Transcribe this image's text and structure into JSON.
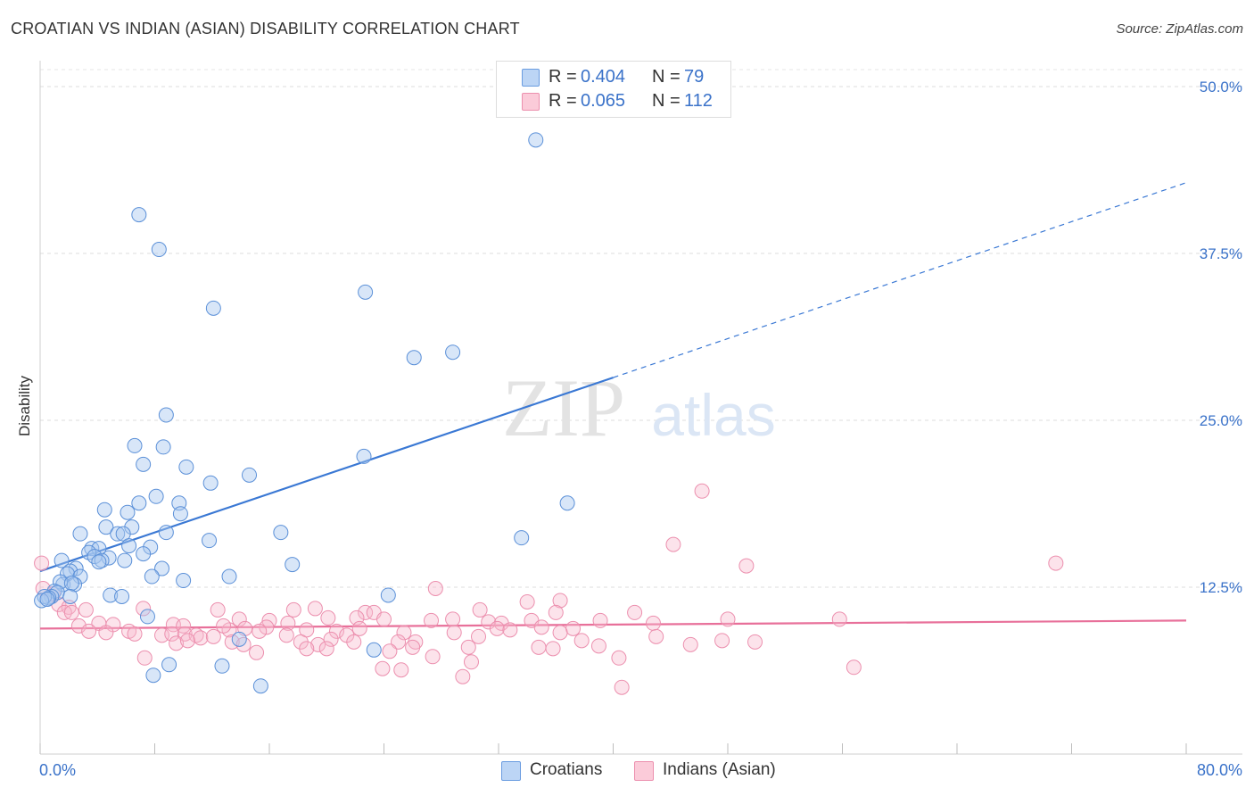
{
  "header": {
    "title": "CROATIAN VS INDIAN (ASIAN) DISABILITY CORRELATION CHART",
    "source": "Source: ZipAtlas.com"
  },
  "watermark": {
    "part1": "ZIP",
    "part2": "atlas"
  },
  "stats": [
    {
      "r_label": "R =",
      "r_value": "0.404",
      "n_label": "N =",
      "n_value": "79",
      "color": "#a8c8f0"
    },
    {
      "r_label": "R =",
      "r_value": "0.065",
      "n_label": "N =",
      "n_value": "112",
      "color": "#f7b8cc"
    }
  ],
  "legend": {
    "croatians": "Croatians",
    "indians": "Indians (Asian)"
  },
  "colors": {
    "blue": "#3a78d4",
    "blue_fill": "#a8c8f0",
    "pink": "#e8709a",
    "pink_fill": "#f7b8cc",
    "tick_label": "#3a72c9"
  },
  "chart_data": {
    "type": "scatter",
    "title": "CROATIAN VS INDIAN (ASIAN) DISABILITY CORRELATION CHART",
    "xlabel": "",
    "ylabel": "Disability",
    "xlim": [
      0,
      80
    ],
    "ylim": [
      0,
      50
    ],
    "x_tick_labels": {
      "left": "0.0%",
      "right": "80.0%"
    },
    "y_ticks": [
      {
        "value": 12.5,
        "label": "12.5%"
      },
      {
        "value": 25.0,
        "label": "25.0%"
      },
      {
        "value": 37.5,
        "label": "37.5%"
      },
      {
        "value": 50.0,
        "label": "50.0%"
      }
    ],
    "grid": true,
    "series": [
      {
        "name": "Croatians",
        "color": "#3a78d4",
        "trend": {
          "x0": 0,
          "y0": 13.7,
          "x1": 40,
          "y1": 28.2,
          "dashed_to_x": 80,
          "dashed_to_y": 42.8
        },
        "points": [
          [
            34.6,
            46.0
          ],
          [
            6.9,
            40.4
          ],
          [
            8.3,
            37.8
          ],
          [
            12.1,
            33.4
          ],
          [
            22.7,
            34.6
          ],
          [
            26.1,
            29.7
          ],
          [
            28.8,
            30.1
          ],
          [
            8.8,
            25.4
          ],
          [
            22.6,
            22.3
          ],
          [
            6.6,
            23.1
          ],
          [
            8.6,
            23.0
          ],
          [
            7.2,
            21.7
          ],
          [
            10.2,
            21.5
          ],
          [
            11.9,
            20.3
          ],
          [
            14.6,
            20.9
          ],
          [
            36.8,
            18.8
          ],
          [
            8.1,
            19.3
          ],
          [
            4.5,
            18.3
          ],
          [
            6.9,
            18.8
          ],
          [
            9.7,
            18.8
          ],
          [
            6.1,
            18.1
          ],
          [
            9.8,
            18.0
          ],
          [
            4.6,
            17.0
          ],
          [
            6.4,
            17.0
          ],
          [
            8.8,
            16.6
          ],
          [
            5.4,
            16.5
          ],
          [
            5.8,
            16.5
          ],
          [
            2.8,
            16.5
          ],
          [
            16.8,
            16.6
          ],
          [
            11.8,
            16.0
          ],
          [
            33.6,
            16.2
          ],
          [
            3.6,
            15.4
          ],
          [
            4.1,
            15.4
          ],
          [
            7.7,
            15.5
          ],
          [
            6.2,
            15.6
          ],
          [
            7.2,
            15.0
          ],
          [
            3.4,
            15.1
          ],
          [
            4.8,
            14.7
          ],
          [
            3.8,
            14.8
          ],
          [
            4.3,
            14.5
          ],
          [
            4.1,
            14.4
          ],
          [
            5.9,
            14.5
          ],
          [
            1.5,
            14.5
          ],
          [
            8.5,
            13.9
          ],
          [
            2.5,
            13.9
          ],
          [
            2.1,
            13.7
          ],
          [
            1.9,
            13.5
          ],
          [
            17.6,
            14.2
          ],
          [
            2.8,
            13.3
          ],
          [
            7.8,
            13.3
          ],
          [
            13.2,
            13.3
          ],
          [
            10.0,
            13.0
          ],
          [
            1.6,
            12.7
          ],
          [
            1.4,
            12.9
          ],
          [
            2.4,
            12.7
          ],
          [
            2.2,
            12.8
          ],
          [
            1.0,
            12.2
          ],
          [
            1.2,
            12.1
          ],
          [
            0.8,
            11.8
          ],
          [
            0.6,
            11.7
          ],
          [
            0.3,
            11.8
          ],
          [
            0.1,
            11.5
          ],
          [
            0.5,
            11.6
          ],
          [
            2.1,
            11.8
          ],
          [
            4.9,
            11.9
          ],
          [
            5.7,
            11.8
          ],
          [
            24.3,
            11.9
          ],
          [
            7.5,
            10.3
          ],
          [
            13.9,
            8.6
          ],
          [
            23.3,
            7.8
          ],
          [
            7.9,
            5.9
          ],
          [
            9.0,
            6.7
          ],
          [
            12.7,
            6.6
          ],
          [
            15.4,
            5.1
          ]
        ]
      },
      {
        "name": "Indians (Asian)",
        "color": "#e8709a",
        "trend": {
          "x0": 0,
          "y0": 9.4,
          "x1": 80,
          "y1": 10.0
        },
        "points": [
          [
            46.2,
            19.7
          ],
          [
            44.2,
            15.7
          ],
          [
            49.3,
            14.1
          ],
          [
            70.9,
            14.3
          ],
          [
            0.1,
            14.3
          ],
          [
            0.2,
            12.4
          ],
          [
            27.6,
            12.4
          ],
          [
            0.9,
            12.0
          ],
          [
            1.3,
            11.2
          ],
          [
            2.0,
            11.0
          ],
          [
            3.2,
            10.8
          ],
          [
            1.7,
            10.6
          ],
          [
            2.2,
            10.6
          ],
          [
            7.2,
            10.9
          ],
          [
            12.4,
            10.8
          ],
          [
            17.7,
            10.8
          ],
          [
            19.2,
            10.9
          ],
          [
            22.7,
            10.6
          ],
          [
            23.3,
            10.6
          ],
          [
            30.7,
            10.8
          ],
          [
            34.0,
            11.4
          ],
          [
            36.3,
            11.5
          ],
          [
            36.0,
            10.6
          ],
          [
            41.5,
            10.6
          ],
          [
            16.0,
            10.0
          ],
          [
            20.1,
            10.2
          ],
          [
            13.9,
            10.1
          ],
          [
            22.1,
            10.2
          ],
          [
            24.0,
            10.1
          ],
          [
            27.3,
            10.0
          ],
          [
            28.8,
            10.1
          ],
          [
            31.3,
            9.9
          ],
          [
            32.2,
            9.8
          ],
          [
            34.3,
            10.0
          ],
          [
            39.1,
            10.0
          ],
          [
            42.8,
            9.8
          ],
          [
            48.0,
            10.1
          ],
          [
            55.8,
            10.1
          ],
          [
            4.1,
            9.8
          ],
          [
            2.7,
            9.6
          ],
          [
            5.1,
            9.7
          ],
          [
            9.3,
            9.7
          ],
          [
            10.0,
            9.6
          ],
          [
            17.3,
            9.8
          ],
          [
            18.6,
            9.3
          ],
          [
            15.8,
            9.5
          ],
          [
            14.3,
            9.4
          ],
          [
            13.2,
            9.3
          ],
          [
            12.8,
            9.6
          ],
          [
            15.3,
            9.2
          ],
          [
            20.7,
            9.2
          ],
          [
            22.3,
            9.4
          ],
          [
            25.4,
            9.1
          ],
          [
            28.9,
            9.1
          ],
          [
            31.9,
            9.4
          ],
          [
            32.8,
            9.3
          ],
          [
            35.0,
            9.5
          ],
          [
            37.2,
            9.4
          ],
          [
            36.3,
            9.1
          ],
          [
            3.4,
            9.2
          ],
          [
            4.6,
            9.1
          ],
          [
            6.2,
            9.2
          ],
          [
            6.6,
            9.0
          ],
          [
            8.5,
            8.9
          ],
          [
            9.2,
            9.0
          ],
          [
            10.1,
            9.0
          ],
          [
            10.9,
            8.9
          ],
          [
            11.2,
            8.7
          ],
          [
            12.1,
            8.8
          ],
          [
            17.2,
            8.9
          ],
          [
            18.2,
            8.4
          ],
          [
            20.3,
            8.6
          ],
          [
            21.4,
            8.9
          ],
          [
            21.9,
            8.4
          ],
          [
            25.0,
            8.4
          ],
          [
            26.2,
            8.4
          ],
          [
            30.6,
            8.8
          ],
          [
            37.8,
            8.5
          ],
          [
            43.0,
            8.8
          ],
          [
            47.6,
            8.5
          ],
          [
            49.9,
            8.4
          ],
          [
            45.4,
            8.2
          ],
          [
            9.5,
            8.3
          ],
          [
            10.3,
            8.5
          ],
          [
            13.4,
            8.4
          ],
          [
            14.2,
            8.2
          ],
          [
            19.4,
            8.2
          ],
          [
            18.6,
            7.9
          ],
          [
            20.0,
            7.9
          ],
          [
            26.0,
            8.0
          ],
          [
            29.9,
            8.0
          ],
          [
            39.0,
            8.1
          ],
          [
            34.8,
            8.0
          ],
          [
            15.1,
            7.6
          ],
          [
            24.4,
            7.7
          ],
          [
            27.4,
            7.3
          ],
          [
            35.8,
            7.9
          ],
          [
            40.4,
            7.2
          ],
          [
            30.1,
            6.9
          ],
          [
            7.3,
            7.2
          ],
          [
            56.8,
            6.5
          ],
          [
            23.9,
            6.4
          ],
          [
            29.5,
            5.8
          ],
          [
            40.6,
            5.0
          ],
          [
            25.2,
            6.3
          ]
        ]
      }
    ]
  }
}
